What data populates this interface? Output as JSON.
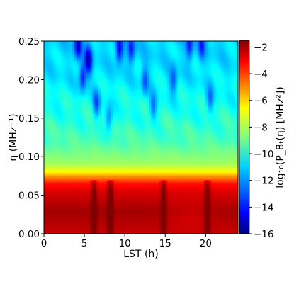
{
  "chart_data": {
    "type": "heatmap",
    "title": "",
    "xlabel": "LST (h)",
    "ylabel": "η (MHz⁻¹)",
    "colorbar_label": "log₁₀(P_Bₜ(η) [MHz²])",
    "xlim": [
      0,
      24
    ],
    "ylim": [
      0,
      0.25
    ],
    "clim": [
      -16,
      -1.5
    ],
    "colormap": "jet",
    "x_ticks": [
      0,
      5,
      10,
      15,
      20
    ],
    "x_tick_labels": [
      "0",
      "5",
      "10",
      "15",
      "20"
    ],
    "y_ticks": [
      0,
      0.05,
      0.1,
      0.15,
      0.2,
      0.25
    ],
    "y_tick_labels": [
      "0.00",
      "0.05",
      "0.10",
      "0.15",
      "0.20",
      "0.25"
    ],
    "cbar_ticks": [
      -16,
      -14,
      -12,
      -10,
      -8,
      -6,
      -4,
      -2
    ],
    "cbar_tick_labels": [
      "−16",
      "−14",
      "−12",
      "−10",
      "−8",
      "−6",
      "−4",
      "−2"
    ],
    "eta_profile": [
      {
        "eta": 0.0,
        "value": -2.5
      },
      {
        "eta": 0.03,
        "value": -2.0
      },
      {
        "eta": 0.055,
        "value": -2.8
      },
      {
        "eta": 0.065,
        "value": -3.5
      },
      {
        "eta": 0.072,
        "value": -4.8
      },
      {
        "eta": 0.08,
        "value": -6.8
      },
      {
        "eta": 0.09,
        "value": -8.2
      },
      {
        "eta": 0.12,
        "value": -9.5
      },
      {
        "eta": 0.16,
        "value": -10.2
      },
      {
        "eta": 0.2,
        "value": -10.8
      },
      {
        "eta": 0.25,
        "value": -11.2
      }
    ],
    "low_eta_dips_lst": [
      6.2,
      8.2,
      14.8,
      20.2
    ],
    "dark_spots": [
      {
        "lst": 4.2,
        "eta": 0.245,
        "value": -15.0
      },
      {
        "lst": 5.5,
        "eta": 0.225,
        "value": -15.0
      },
      {
        "lst": 4.8,
        "eta": 0.205,
        "value": -14.0
      },
      {
        "lst": 9.3,
        "eta": 0.24,
        "value": -14.5
      },
      {
        "lst": 10.8,
        "eta": 0.24,
        "value": -14.0
      },
      {
        "lst": 18.0,
        "eta": 0.245,
        "value": -14.0
      },
      {
        "lst": 19.5,
        "eta": 0.245,
        "value": -13.5
      },
      {
        "lst": 12.5,
        "eta": 0.2,
        "value": -13.0
      },
      {
        "lst": 16.0,
        "eta": 0.2,
        "value": -13.0
      },
      {
        "lst": 6.5,
        "eta": 0.17,
        "value": -13.0
      },
      {
        "lst": 8.0,
        "eta": 0.15,
        "value": -12.5
      },
      {
        "lst": 13.5,
        "eta": 0.165,
        "value": -12.5
      },
      {
        "lst": 20.5,
        "eta": 0.175,
        "value": -12.5
      }
    ]
  }
}
